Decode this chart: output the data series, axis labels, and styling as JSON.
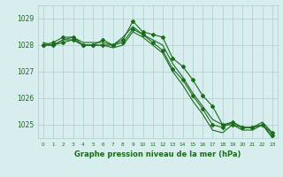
{
  "title": "Graphe pression niveau de la mer (hPa)",
  "xlabel": "Graphe pression niveau de la mer (hPa)",
  "bg_color": "#d8eeee",
  "grid_color": "#aacccc",
  "line_color": "#1a6b1a",
  "text_color": "#1a6b1a",
  "ylim": [
    1024.5,
    1029.5
  ],
  "xlim": [
    -0.5,
    23.5
  ],
  "yticks": [
    1025,
    1026,
    1027,
    1028,
    1029
  ],
  "xticks": [
    0,
    1,
    2,
    3,
    4,
    5,
    6,
    7,
    8,
    9,
    10,
    11,
    12,
    13,
    14,
    15,
    16,
    17,
    18,
    19,
    20,
    21,
    22,
    23
  ],
  "series": [
    [
      1028.0,
      1028.1,
      1028.3,
      1028.3,
      1028.0,
      1028.0,
      1028.2,
      1028.0,
      1028.2,
      1028.9,
      1028.5,
      1028.4,
      1028.3,
      1027.5,
      1027.2,
      1026.7,
      1026.1,
      1025.7,
      1025.0,
      1025.0,
      1024.9,
      1024.9,
      1025.0,
      1024.7
    ],
    [
      1028.1,
      1028.0,
      1028.2,
      1028.3,
      1028.1,
      1028.1,
      1028.1,
      1028.0,
      1028.3,
      1028.7,
      1028.4,
      1028.2,
      1028.0,
      1027.3,
      1026.8,
      1026.2,
      1025.7,
      1025.2,
      1025.0,
      1025.1,
      1024.9,
      1024.9,
      1025.1,
      1024.7
    ],
    [
      1028.0,
      1028.0,
      1028.2,
      1028.2,
      1028.0,
      1028.0,
      1028.0,
      1027.9,
      1028.0,
      1028.5,
      1028.3,
      1028.0,
      1027.7,
      1027.0,
      1026.5,
      1025.9,
      1025.4,
      1024.8,
      1024.7,
      1025.0,
      1024.8,
      1024.8,
      1025.0,
      1024.5
    ],
    [
      1028.0,
      1028.0,
      1028.1,
      1028.2,
      1028.0,
      1028.0,
      1028.0,
      1028.0,
      1028.1,
      1028.6,
      1028.4,
      1028.1,
      1027.8,
      1027.1,
      1026.7,
      1026.1,
      1025.6,
      1025.0,
      1024.9,
      1025.1,
      1024.9,
      1024.9,
      1025.0,
      1024.6
    ]
  ],
  "marker_series": [
    0,
    3
  ],
  "marker": "D",
  "marker_size": 2,
  "linewidth": 0.8
}
